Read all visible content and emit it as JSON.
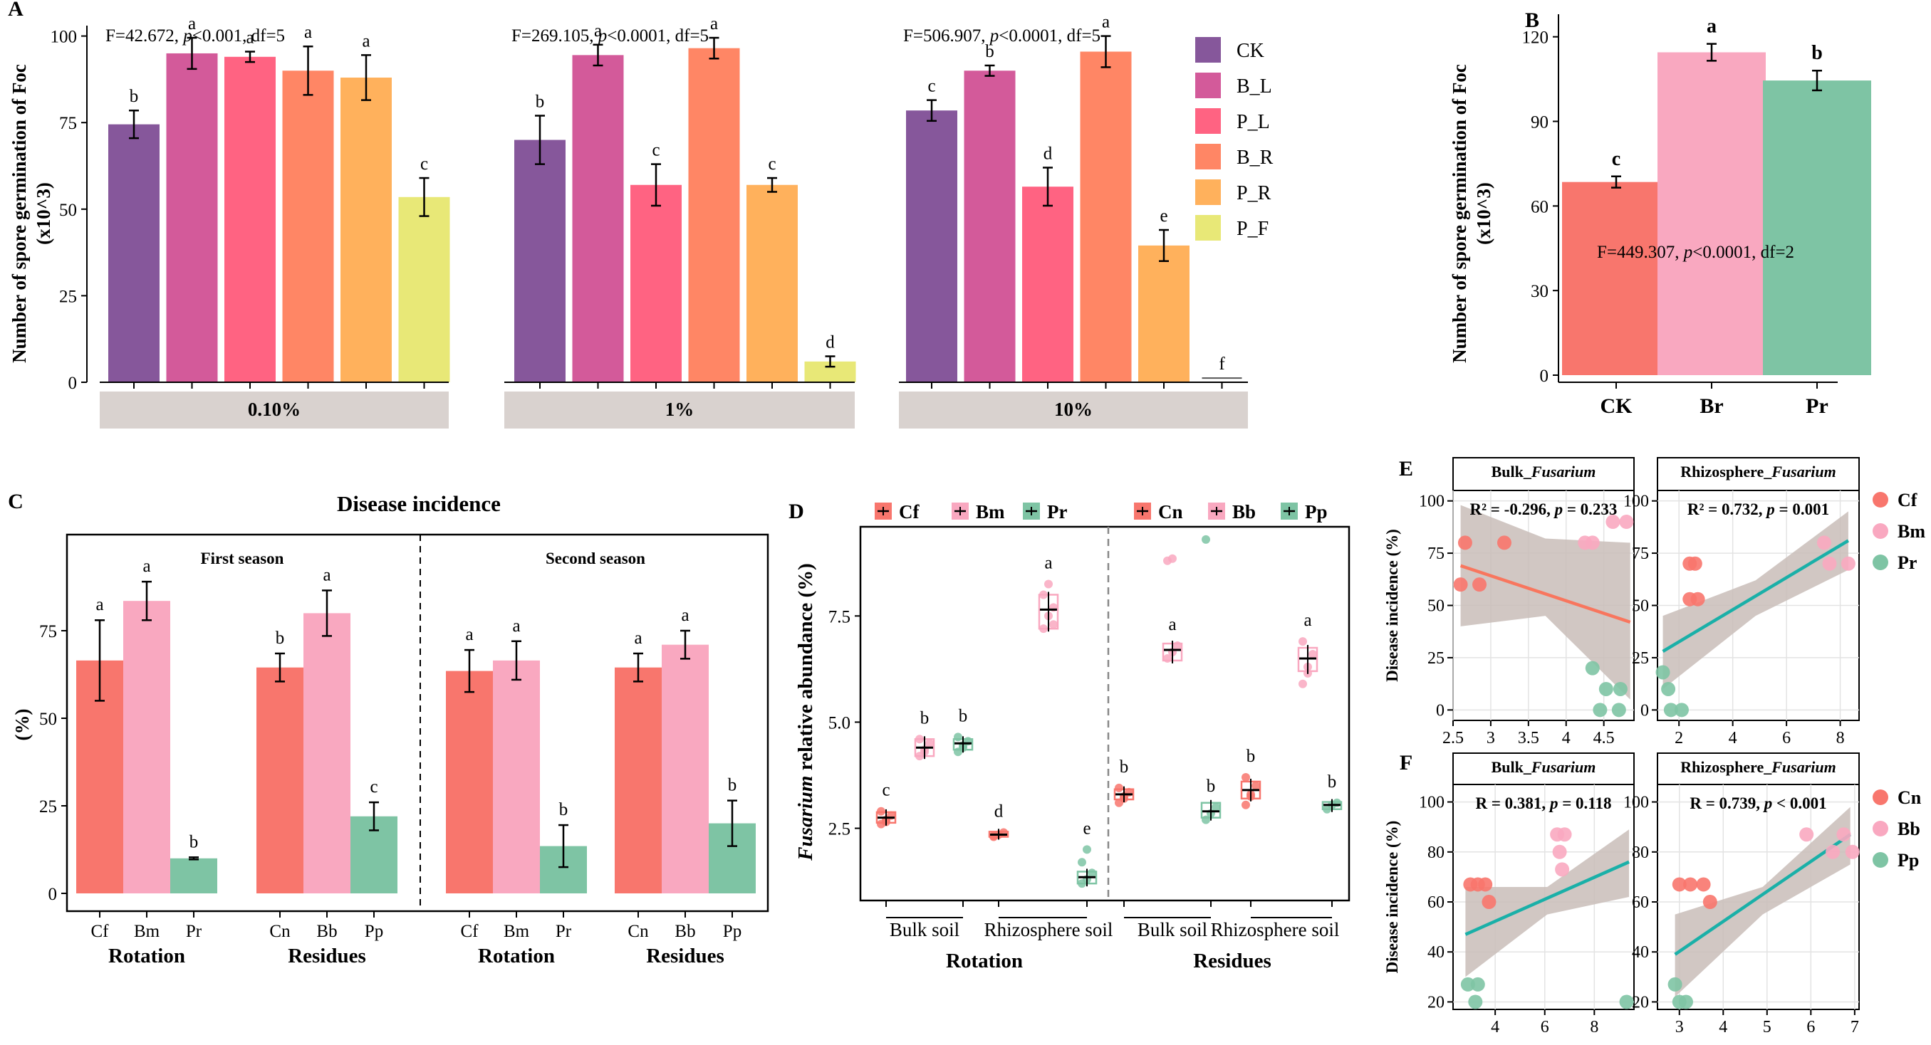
{
  "colors": {
    "CK": "#86579b",
    "B_L": "#d35a9a",
    "P_L": "#ff6382",
    "B_R": "#ff8665",
    "P_R": "#ffb15c",
    "P_F": "#e8e877",
    "red": "#f8766d",
    "pink": "#f9a8c0",
    "green": "#7ec4a4",
    "line_green": "#1ab0a8",
    "line_red": "#f8765e",
    "strip": "#d9d2cf",
    "band": "#c9bdb8"
  },
  "chart_data": [
    {
      "panel": "A",
      "type": "bar",
      "ylabel_lines": [
        "Number of spore germination of Foc",
        "(x10^3)"
      ],
      "ylim": [
        0,
        110
      ],
      "yticks": [
        0,
        25,
        50,
        75,
        100
      ],
      "series_names": [
        "CK",
        "B_L",
        "P_L",
        "B_R",
        "P_R",
        "P_F"
      ],
      "groups": [
        {
          "label": "0.10%",
          "stat": "F=42.672, p<0.001, df=5",
          "values": [
            74.5,
            95,
            94,
            90,
            88,
            53.5
          ],
          "errors": [
            4,
            4.5,
            1.5,
            7,
            6.5,
            5.5
          ],
          "letters": [
            "b",
            "a",
            "a",
            "a",
            "a",
            "c"
          ]
        },
        {
          "label": "1%",
          "stat": "F=269.105, p<0.0001, df=5",
          "values": [
            70,
            94.5,
            57,
            96.5,
            57,
            6
          ],
          "errors": [
            7,
            3,
            6,
            3,
            2,
            1.5
          ],
          "letters": [
            "b",
            "a",
            "c",
            "a",
            "c",
            "d"
          ]
        },
        {
          "label": "10%",
          "stat": "F=506.907, p<0.0001, df=5",
          "values": [
            78.5,
            90,
            56.5,
            95.5,
            39.5,
            1.2
          ],
          "errors": [
            3,
            1.5,
            5.5,
            4.5,
            4.5,
            0
          ],
          "letters": [
            "c",
            "b",
            "d",
            "a",
            "e",
            "f"
          ]
        }
      ]
    },
    {
      "panel": "B",
      "type": "bar",
      "ylabel_lines": [
        "Number of spore germination of Foc",
        "(x10^3)"
      ],
      "ylim": [
        0,
        128
      ],
      "yticks": [
        0,
        30,
        60,
        90,
        120
      ],
      "categories": [
        "CK",
        "Br",
        "Pr"
      ],
      "values": [
        68.5,
        114.5,
        104.5
      ],
      "errors": [
        2,
        3,
        3.5
      ],
      "letters": [
        "c",
        "a",
        "b"
      ],
      "stat": "F=449.307, p<0.0001, df=2"
    },
    {
      "panel": "C",
      "type": "bar",
      "title": "Disease incidence",
      "ylabel": "(%)",
      "ylim": [
        0,
        100
      ],
      "yticks": [
        0,
        25,
        50,
        75
      ],
      "seasons": [
        {
          "label": "First season",
          "groups": [
            {
              "label": "Rotation",
              "categories": [
                "Cf",
                "Bm",
                "Pr"
              ],
              "values": [
                66.5,
                83.5,
                10
              ],
              "errors": [
                11.5,
                5.5,
                0.3
              ],
              "letters": [
                "a",
                "a",
                "b"
              ]
            },
            {
              "label": "Residues",
              "categories": [
                "Cn",
                "Bb",
                "Pp"
              ],
              "values": [
                64.5,
                80,
                22
              ],
              "errors": [
                4,
                6.5,
                4
              ],
              "letters": [
                "b",
                "a",
                "c"
              ]
            }
          ]
        },
        {
          "label": "Second season",
          "groups": [
            {
              "label": "Rotation",
              "categories": [
                "Cf",
                "Bm",
                "Pr"
              ],
              "values": [
                63.5,
                66.5,
                13.5
              ],
              "errors": [
                6,
                5.5,
                6
              ],
              "letters": [
                "a",
                "a",
                "b"
              ]
            },
            {
              "label": "Residues",
              "categories": [
                "Cn",
                "Bb",
                "Pp"
              ],
              "values": [
                64.5,
                71,
                20
              ],
              "errors": [
                4,
                4,
                6.5
              ],
              "letters": [
                "a",
                "a",
                "b"
              ]
            }
          ]
        }
      ]
    },
    {
      "panel": "D",
      "type": "box",
      "ylabel_italic": "Fusarium",
      "ylabel_rest": " relative abundance (%)",
      "ylim": [
        0.8,
        9.6
      ],
      "yticks": [
        2.5,
        5.0,
        7.5
      ],
      "ytick_labels": [
        "2.5",
        "5.0",
        "7.5"
      ],
      "legend_left": [
        "Cf",
        "Bm",
        "Pr"
      ],
      "legend_right": [
        "Cn",
        "Bb",
        "Pp"
      ],
      "sides": [
        {
          "label": "Rotation",
          "subgroups": [
            {
              "label": "Bulk soil",
              "boxes": [
                {
                  "name": "Cf",
                  "median": 2.75,
                  "q1": 2.63,
                  "q3": 2.88,
                  "letter": "c",
                  "points": [
                    2.6,
                    2.7,
                    2.8,
                    2.9,
                    2.65
                  ]
                },
                {
                  "name": "Bm",
                  "median": 4.4,
                  "q1": 4.2,
                  "q3": 4.6,
                  "letter": "b",
                  "points": [
                    4.2,
                    4.35,
                    4.5,
                    4.6,
                    4.3
                  ]
                },
                {
                  "name": "Pr",
                  "median": 4.5,
                  "q1": 4.35,
                  "q3": 4.6,
                  "letter": "b",
                  "points": [
                    4.3,
                    4.45,
                    4.55,
                    4.65,
                    4.4
                  ]
                }
              ]
            },
            {
              "label": "Rhizosphere soil",
              "boxes": [
                {
                  "name": "Cf",
                  "median": 2.35,
                  "q1": 2.3,
                  "q3": 2.42,
                  "letter": "d",
                  "points": [
                    2.3,
                    2.35,
                    2.4,
                    2.32
                  ]
                },
                {
                  "name": "Bm",
                  "median": 7.65,
                  "q1": 7.2,
                  "q3": 8.0,
                  "letter": "a",
                  "points": [
                    7.2,
                    7.5,
                    7.7,
                    8.0,
                    8.25,
                    7.3
                  ]
                },
                {
                  "name": "Pr",
                  "median": 1.35,
                  "q1": 1.2,
                  "q3": 1.48,
                  "letter": "e",
                  "points": [
                    1.2,
                    1.3,
                    1.45,
                    1.7,
                    2.0
                  ]
                }
              ]
            }
          ]
        },
        {
          "label": "Residues",
          "subgroups": [
            {
              "label": "Bulk soil",
              "boxes": [
                {
                  "name": "Cn",
                  "median": 3.3,
                  "q1": 3.18,
                  "q3": 3.42,
                  "letter": "b",
                  "points": [
                    3.1,
                    3.25,
                    3.35,
                    3.45,
                    3.2
                  ]
                },
                {
                  "name": "Bb",
                  "median": 6.7,
                  "q1": 6.45,
                  "q3": 6.85,
                  "letter": "a",
                  "points": [
                    6.5,
                    6.65,
                    6.8,
                    8.8,
                    8.85
                  ]
                },
                {
                  "name": "Pp",
                  "median": 2.9,
                  "q1": 2.75,
                  "q3": 3.1,
                  "letter": "b",
                  "points": [
                    2.7,
                    2.85,
                    3.0,
                    9.3
                  ]
                }
              ]
            },
            {
              "label": "Rhizosphere soil",
              "boxes": [
                {
                  "name": "Cn",
                  "median": 3.4,
                  "q1": 3.2,
                  "q3": 3.6,
                  "letter": "b",
                  "points": [
                    3.05,
                    3.3,
                    3.5,
                    3.7,
                    3.25
                  ]
                },
                {
                  "name": "Bb",
                  "median": 6.5,
                  "q1": 6.2,
                  "q3": 6.75,
                  "letter": "a",
                  "points": [
                    5.9,
                    6.3,
                    6.6,
                    6.9,
                    6.15
                  ]
                },
                {
                  "name": "Pp",
                  "median": 3.05,
                  "q1": 2.95,
                  "q3": 3.12,
                  "letter": "b",
                  "points": [
                    2.95,
                    3.05,
                    3.1
                  ]
                }
              ]
            }
          ]
        }
      ]
    },
    {
      "panel": "E",
      "type": "scatter",
      "ylabel": "Disease incidence (%)",
      "legend": [
        "Cf",
        "Bm",
        "Pr"
      ],
      "plots": [
        {
          "strip_main": "Bulk_",
          "strip_italic": "Fusarium",
          "annot": "R² = -0.296, p = 0.233",
          "xlim": [
            2.5,
            4.9
          ],
          "xticks": [
            2.5,
            3.0,
            3.5,
            4.0,
            4.5
          ],
          "ylim": [
            -5,
            105
          ],
          "yticks": [
            0,
            25,
            50,
            75,
            100
          ],
          "fit": {
            "x": [
              2.6,
              4.85
            ],
            "y": [
              69,
              42
            ]
          },
          "ci_top": [
            98,
            82,
            80
          ],
          "ci_bot": [
            40,
            45,
            5
          ],
          "points": [
            {
              "g": 0,
              "x": 2.6,
              "y": 60
            },
            {
              "g": 0,
              "x": 2.66,
              "y": 80
            },
            {
              "g": 0,
              "x": 2.85,
              "y": 60
            },
            {
              "g": 0,
              "x": 3.18,
              "y": 80
            },
            {
              "g": 1,
              "x": 4.25,
              "y": 80
            },
            {
              "g": 1,
              "x": 4.35,
              "y": 80
            },
            {
              "g": 1,
              "x": 4.62,
              "y": 90
            },
            {
              "g": 1,
              "x": 4.8,
              "y": 90
            },
            {
              "g": 2,
              "x": 4.35,
              "y": 20
            },
            {
              "g": 2,
              "x": 4.45,
              "y": 0
            },
            {
              "g": 2,
              "x": 4.53,
              "y": 10
            },
            {
              "g": 2,
              "x": 4.7,
              "y": 0
            },
            {
              "g": 2,
              "x": 4.72,
              "y": 10
            }
          ]
        },
        {
          "strip_main": "Rhizosphere_",
          "strip_italic": "Fusarium",
          "annot": "R² = 0.732, p = 0.001",
          "xlim": [
            1.2,
            8.7
          ],
          "xticks": [
            2,
            4,
            6,
            8
          ],
          "ylim": [
            -5,
            105
          ],
          "yticks": [
            0,
            25,
            50,
            75,
            100
          ],
          "fit": {
            "x": [
              1.4,
              8.3
            ],
            "y": [
              28,
              81
            ]
          },
          "ci_top": [
            45,
            62,
            95
          ],
          "ci_bot": [
            10,
            45,
            67
          ],
          "points": [
            {
              "g": 0,
              "x": 2.4,
              "y": 70
            },
            {
              "g": 0,
              "x": 2.6,
              "y": 70
            },
            {
              "g": 0,
              "x": 2.4,
              "y": 53
            },
            {
              "g": 0,
              "x": 2.7,
              "y": 53
            },
            {
              "g": 1,
              "x": 7.4,
              "y": 80
            },
            {
              "g": 1,
              "x": 7.6,
              "y": 70
            },
            {
              "g": 1,
              "x": 8.3,
              "y": 70
            },
            {
              "g": 2,
              "x": 1.4,
              "y": 18
            },
            {
              "g": 2,
              "x": 1.6,
              "y": 10
            },
            {
              "g": 2,
              "x": 1.7,
              "y": 0
            },
            {
              "g": 2,
              "x": 2.1,
              "y": 0
            }
          ]
        }
      ]
    },
    {
      "panel": "F",
      "type": "scatter",
      "ylabel": "Disease incidence (%)",
      "legend": [
        "Cn",
        "Bb",
        "Pp"
      ],
      "plots": [
        {
          "strip_main": "Bulk_",
          "strip_italic": "Fusarium",
          "annot": "R = 0.381, p = 0.118",
          "xlim": [
            2.3,
            9.6
          ],
          "xticks": [
            4,
            6,
            8
          ],
          "ylim": [
            17,
            107
          ],
          "yticks": [
            20,
            40,
            60,
            80,
            100
          ],
          "fit": {
            "x": [
              2.8,
              9.4
            ],
            "y": [
              47,
              76
            ]
          },
          "ci_top": [
            66,
            66,
            89
          ],
          "ci_bot": [
            30,
            55,
            62
          ],
          "points": [
            {
              "g": 0,
              "x": 3.0,
              "y": 67
            },
            {
              "g": 0,
              "x": 3.3,
              "y": 67
            },
            {
              "g": 0,
              "x": 3.6,
              "y": 67
            },
            {
              "g": 0,
              "x": 3.75,
              "y": 60
            },
            {
              "g": 1,
              "x": 6.5,
              "y": 87
            },
            {
              "g": 1,
              "x": 6.8,
              "y": 87
            },
            {
              "g": 1,
              "x": 6.6,
              "y": 80
            },
            {
              "g": 1,
              "x": 6.7,
              "y": 73
            },
            {
              "g": 2,
              "x": 2.9,
              "y": 27
            },
            {
              "g": 2,
              "x": 3.2,
              "y": 20
            },
            {
              "g": 2,
              "x": 3.3,
              "y": 27
            },
            {
              "g": 2,
              "x": 9.3,
              "y": 20
            }
          ]
        },
        {
          "strip_main": "Rhizosphere_",
          "strip_italic": "Fusarium",
          "annot": "R = 0.739, p < 0.001",
          "xlim": [
            2.5,
            7.1
          ],
          "xticks": [
            3,
            4,
            5,
            6,
            7
          ],
          "ylim": [
            17,
            107
          ],
          "yticks": [
            20,
            40,
            60,
            80,
            100
          ],
          "fit": {
            "x": [
              2.9,
              6.9
            ],
            "y": [
              39,
              87
            ]
          },
          "ci_top": [
            55,
            66,
            98
          ],
          "ci_bot": [
            22,
            55,
            75
          ],
          "points": [
            {
              "g": 0,
              "x": 3.0,
              "y": 67
            },
            {
              "g": 0,
              "x": 3.25,
              "y": 67
            },
            {
              "g": 0,
              "x": 3.55,
              "y": 67
            },
            {
              "g": 0,
              "x": 3.7,
              "y": 60
            },
            {
              "g": 1,
              "x": 5.9,
              "y": 87
            },
            {
              "g": 1,
              "x": 6.5,
              "y": 80
            },
            {
              "g": 1,
              "x": 6.75,
              "y": 87
            },
            {
              "g": 1,
              "x": 6.95,
              "y": 80
            },
            {
              "g": 2,
              "x": 2.9,
              "y": 27
            },
            {
              "g": 2,
              "x": 3.0,
              "y": 20
            },
            {
              "g": 2,
              "x": 3.15,
              "y": 20
            }
          ]
        }
      ]
    }
  ],
  "panel_letters": [
    "A",
    "B",
    "C",
    "D",
    "E",
    "F"
  ],
  "c_group_titles": [
    "Rotation",
    "Residues",
    "Rotation",
    "Residues"
  ]
}
